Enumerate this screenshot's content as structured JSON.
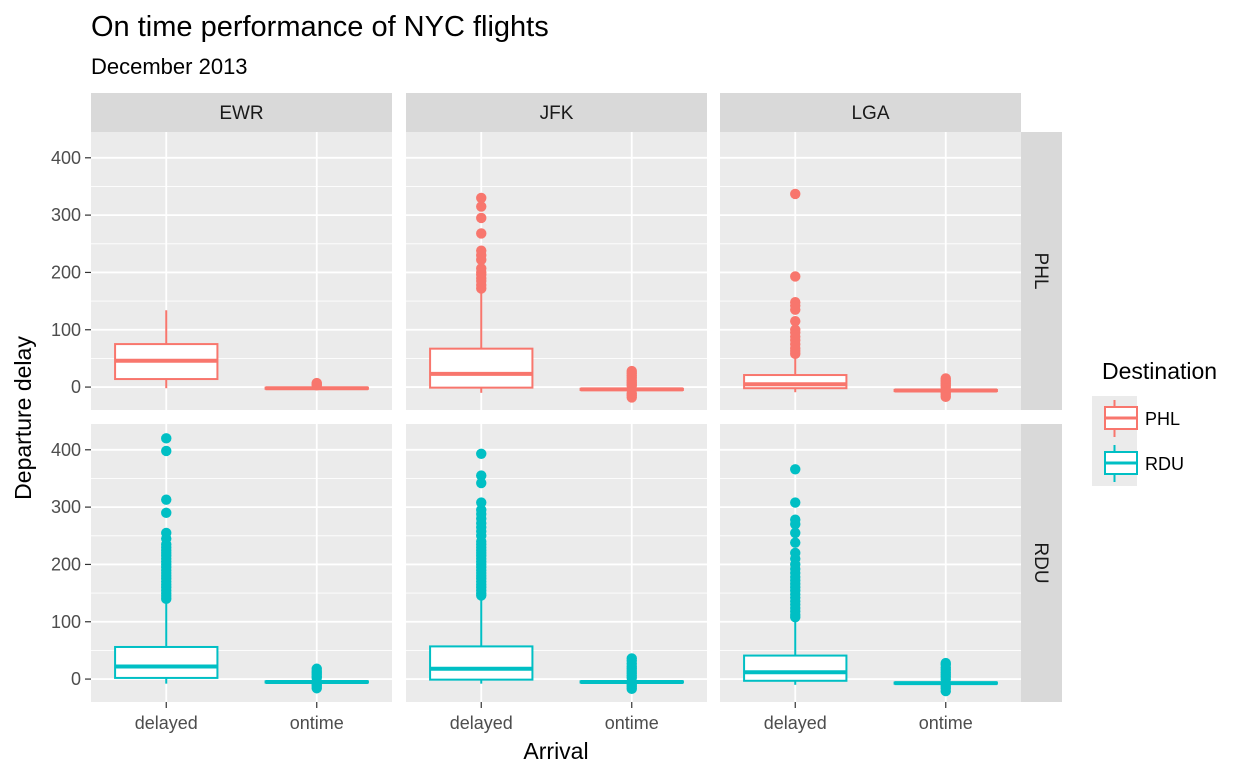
{
  "chart_data": {
    "type": "boxplot",
    "title": "On time performance of NYC flights",
    "subtitle": "December 2013",
    "xlabel": "Arrival",
    "ylabel": "Departure delay",
    "x_categories": [
      "delayed",
      "ontime"
    ],
    "facet_cols": [
      "EWR",
      "JFK",
      "LGA"
    ],
    "facet_rows": [
      "PHL",
      "RDU"
    ],
    "ylim": [
      -40,
      445
    ],
    "y_ticks": [
      0,
      100,
      200,
      300,
      400
    ],
    "grid": true,
    "legend": {
      "title": "Destination",
      "position": "right",
      "entries": [
        {
          "name": "PHL",
          "color": "#F8766D"
        },
        {
          "name": "RDU",
          "color": "#00BFC4"
        }
      ]
    },
    "panels": [
      {
        "origin": "EWR",
        "dest": "PHL",
        "boxes": [
          {
            "x": "delayed",
            "min": -2,
            "q1": 14,
            "median": 46,
            "q3": 75,
            "max": 134,
            "outliers": []
          },
          {
            "x": "ontime",
            "min": -4,
            "q1": -3,
            "median": -2,
            "q3": -1,
            "max": 1,
            "outliers": [
              3,
              5,
              7
            ]
          }
        ]
      },
      {
        "origin": "JFK",
        "dest": "PHL",
        "boxes": [
          {
            "x": "delayed",
            "min": -10,
            "q1": -1,
            "median": 23,
            "q3": 67,
            "max": 168,
            "outliers": [
              172,
              178,
              185,
              190,
              196,
              200,
              207,
              222,
              230,
              238,
              268,
              295,
              315,
              330
            ]
          },
          {
            "x": "ontime",
            "min": -9,
            "q1": -5,
            "median": -4,
            "q3": -3,
            "max": 0,
            "outliers": [
              -18,
              -14,
              -11,
              2,
              5,
              8,
              12,
              16,
              20,
              24,
              28
            ]
          }
        ]
      },
      {
        "origin": "LGA",
        "dest": "PHL",
        "boxes": [
          {
            "x": "delayed",
            "min": -9,
            "q1": -2,
            "median": 5,
            "q3": 21,
            "max": 54,
            "outliers": [
              58,
              63,
              68,
              75,
              82,
              88,
              95,
              100,
              115,
              135,
              142,
              148,
              193,
              337
            ]
          },
          {
            "x": "ontime",
            "min": -9,
            "q1": -7,
            "median": -6,
            "q3": -5,
            "max": -2,
            "outliers": [
              -17,
              -13,
              -10,
              0,
              3,
              6,
              9,
              12,
              15
            ]
          }
        ]
      },
      {
        "origin": "EWR",
        "dest": "RDU",
        "boxes": [
          {
            "x": "delayed",
            "min": -8,
            "q1": 2,
            "median": 22,
            "q3": 56,
            "max": 135,
            "outliers": [
              140,
              145,
              150,
              155,
              160,
              165,
              170,
              175,
              180,
              185,
              190,
              195,
              200,
              205,
              210,
              215,
              220,
              225,
              230,
              235,
              245,
              255,
              290,
              313,
              398,
              420
            ]
          },
          {
            "x": "ontime",
            "min": -8,
            "q1": -6,
            "median": -5,
            "q3": -4,
            "max": -1,
            "outliers": [
              -16,
              -12,
              -9,
              2,
              5,
              8,
              11,
              14,
              18
            ]
          }
        ]
      },
      {
        "origin": "JFK",
        "dest": "RDU",
        "boxes": [
          {
            "x": "delayed",
            "min": -8,
            "q1": -1,
            "median": 18,
            "q3": 57,
            "max": 142,
            "outliers": [
              146,
              150,
              155,
              160,
              165,
              170,
              175,
              180,
              185,
              190,
              195,
              200,
              205,
              210,
              215,
              220,
              225,
              230,
              235,
              240,
              250,
              258,
              265,
              272,
              280,
              288,
              295,
              308,
              342,
              355,
              393
            ]
          },
          {
            "x": "ontime",
            "min": -9,
            "q1": -6,
            "median": -5,
            "q3": -4,
            "max": -1,
            "outliers": [
              -17,
              -13,
              -10,
              2,
              6,
              10,
              14,
              18,
              22,
              27,
              32,
              36
            ]
          }
        ]
      },
      {
        "origin": "LGA",
        "dest": "RDU",
        "boxes": [
          {
            "x": "delayed",
            "min": -10,
            "q1": -3,
            "median": 12,
            "q3": 41,
            "max": 104,
            "outliers": [
              108,
              112,
              118,
              124,
              130,
              136,
              142,
              148,
              154,
              160,
              166,
              172,
              178,
              185,
              192,
              200,
              210,
              220,
              238,
              255,
              270,
              278,
              308,
              366
            ]
          },
          {
            "x": "ontime",
            "min": -11,
            "q1": -8,
            "median": -7,
            "q3": -6,
            "max": -3,
            "outliers": [
              -21,
              -16,
              -12,
              0,
              4,
              8,
              12,
              16,
              20,
              25,
              28
            ]
          }
        ]
      }
    ]
  }
}
